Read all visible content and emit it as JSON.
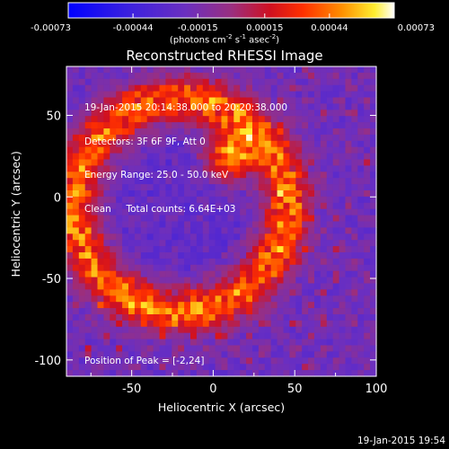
{
  "chart_data": {
    "type": "heatmap",
    "title": "Reconstructed RHESSI Image",
    "xlabel": "Heliocentric X (arcsec)",
    "ylabel": "Heliocentric Y (arcsec)",
    "xlim": [
      -90,
      100
    ],
    "ylim": [
      -110,
      80
    ],
    "xticks": [
      -50,
      0,
      50,
      100
    ],
    "yticks": [
      50,
      0,
      -50,
      -100
    ],
    "colorbar": {
      "range": [
        -0.00073,
        0.00073
      ],
      "tick_values": [
        -0.00073,
        -0.00044,
        -0.00015,
        0.00015,
        0.00044,
        0.00073
      ],
      "tick_labels": [
        "-0.00073",
        "-0.00044",
        "-0.00015",
        "0.00015",
        "0.00044",
        "0.00073"
      ],
      "colors": [
        "#0000ff",
        "#5a2bd0",
        "#7a3ab0",
        "#b03060",
        "#ff0000",
        "#ff8000",
        "#ffff00",
        "#ffffff"
      ]
    },
    "peak_position": [
      -2,
      24
    ],
    "ring": {
      "center": [
        -20,
        -5
      ],
      "radius": 65,
      "bright_spot": [
        10,
        25
      ]
    }
  },
  "colorbar_units": {
    "base": "(photons cm",
    "exp1": "-2",
    "mid": " s",
    "exp2": "-1",
    "mid2": " asec",
    "exp3": "-2",
    "tail": ")"
  },
  "info": {
    "line1": "19-Jan-2015 20:14:38.000 to 20:20:38.000",
    "line2": "Detectors: 3F 6F 9F, Att 0",
    "line3": "Energy Range: 25.0 - 50.0 keV",
    "line4": "Clean     Total counts: 6.64E+03"
  },
  "peak_label": "Position of Peak = [-2,24]",
  "timestamp": "19-Jan-2015 19:54"
}
